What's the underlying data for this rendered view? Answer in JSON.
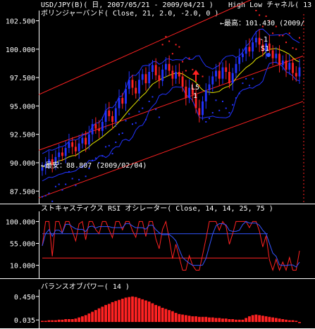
{
  "header": {
    "title": "USD/JPY(B)( 日, 2007/05/21 - 2009/04/21 )",
    "channel_label": "High Low チャネル( 13",
    "bollinger_label": "ボリンジャーバンド( Close, 21, 2.0, -2.0, 0 )"
  },
  "colors": {
    "background": "#000000",
    "axis": "#ffffff",
    "up_candle": "#2233ff",
    "down_candle": "#ff2222",
    "channel_line": "#ff2222",
    "bollinger_band": "#2233ff",
    "bollinger_mid": "#e6e600",
    "stoch_k": "#ff2222",
    "stoch_d": "#3355ff",
    "bop_bar": "#ff2222"
  },
  "chart_data": [
    {
      "type": "candlestick",
      "name": "main",
      "y_ticks": [
        "102.500",
        "100.000",
        "97.500",
        "95.000",
        "92.500",
        "90.000",
        "87.500"
      ],
      "y_tick_values": [
        102.5,
        100.0,
        97.5,
        95.0,
        92.5,
        90.0,
        87.5
      ],
      "ylim": [
        86.4,
        103.4
      ],
      "annotations": {
        "high": "←最高：101.430 (2009/",
        "low": "←最安：88.807 (2009/02/04)",
        "l5": "L5",
        "one": "1",
        "neg1": "-1",
        "s1": "S1"
      },
      "closes": [
        89.6,
        89.9,
        90.3,
        89.8,
        90.5,
        90.9,
        90.6,
        91.3,
        91.8,
        91.4,
        91.0,
        91.7,
        92.2,
        91.6,
        92.5,
        93.4,
        93.0,
        92.8,
        93.6,
        94.6,
        94.1,
        93.6,
        94.8,
        95.7,
        95.2,
        96.5,
        97.3,
        96.6,
        96.1,
        97.3,
        97.8,
        97.0,
        98.0,
        98.6,
        97.7,
        97.2,
        98.2,
        98.7,
        98.1,
        97.4,
        98.0,
        97.6,
        96.7,
        95.7,
        96.6,
        96.0,
        94.8,
        94.2,
        95.4,
        96.4,
        96.9,
        97.6,
        98.1,
        97.4,
        98.4,
        98.0,
        97.0,
        97.9,
        98.7,
        99.3,
        99.6,
        100.2,
        99.8,
        100.6,
        101.0,
        100.4,
        99.8,
        100.5,
        99.9,
        99.2,
        99.6,
        98.6,
        99.0,
        98.2,
        98.8,
        97.9,
        97.6,
        98.4
      ]
    },
    {
      "type": "line",
      "name": "stochastic_rsi",
      "label": "ストキャスティクス RSI オシレーター( Close, 14, 14, 25, 75 )",
      "y_ticks": [
        "100.000",
        "55.000",
        "10.000"
      ],
      "y_tick_values": [
        100,
        55,
        10
      ],
      "ylim": [
        -8,
        118
      ],
      "reference_lines": [
        75,
        25
      ]
    },
    {
      "type": "bar",
      "name": "balance_of_power",
      "label": "バランスオブパワー( 14 )",
      "y_ticks": [
        "0.450",
        "0.035"
      ],
      "y_tick_values": [
        0.45,
        0.035
      ],
      "ylim": [
        0.0,
        0.56
      ],
      "values": [
        0.02,
        0.02,
        0.03,
        0.03,
        0.03,
        0.04,
        0.04,
        0.05,
        0.05,
        0.05,
        0.06,
        0.08,
        0.1,
        0.12,
        0.15,
        0.18,
        0.21,
        0.24,
        0.27,
        0.3,
        0.32,
        0.35,
        0.37,
        0.39,
        0.41,
        0.43,
        0.44,
        0.45,
        0.44,
        0.42,
        0.4,
        0.38,
        0.36,
        0.33,
        0.3,
        0.28,
        0.25,
        0.23,
        0.21,
        0.19,
        0.16,
        0.14,
        0.13,
        0.12,
        0.11,
        0.1,
        0.1,
        0.09,
        0.09,
        0.09,
        0.08,
        0.08,
        0.07,
        0.07,
        0.06,
        0.06,
        0.05,
        0.05,
        0.04,
        0.04,
        0.04,
        0.07,
        0.1,
        0.12,
        0.13,
        0.12,
        0.11,
        0.1,
        0.09,
        0.08,
        0.07,
        0.06,
        0.05,
        0.04,
        0.03,
        0.03,
        0.02,
        -0.02
      ]
    }
  ]
}
